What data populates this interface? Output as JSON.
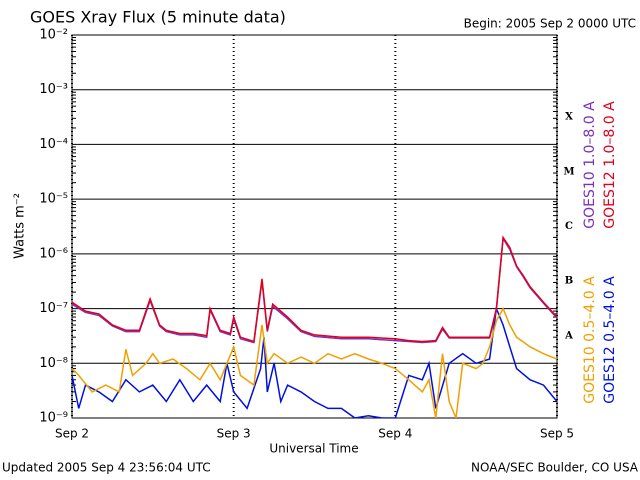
{
  "chart_data": {
    "type": "line",
    "title": "GOES Xray Flux (5 minute data)",
    "subtitle": "Begin:  2005 Sep 2 0000 UTC",
    "y_label": "Watts m⁻²",
    "x_label": "Universal Time",
    "footer_left": "Updated 2005 Sep  4 23:56:04 UTC",
    "footer_right": "NOAA/SEC Boulder, CO USA",
    "log_scale": true,
    "grid": true,
    "xlim": [
      0,
      72
    ],
    "xticks": [
      {
        "value": 0,
        "label": "Sep 2"
      },
      {
        "value": 24,
        "label": "Sep 3"
      },
      {
        "value": 48,
        "label": "Sep 4"
      },
      {
        "value": 72,
        "label": "Sep 5"
      }
    ],
    "ylim": [
      1e-09,
      0.01
    ],
    "yticks": [
      {
        "value": 1e-09,
        "label": "10⁻⁹"
      },
      {
        "value": 1e-08,
        "label": "10⁻⁸"
      },
      {
        "value": 1e-07,
        "label": "10⁻⁷"
      },
      {
        "value": 1e-06,
        "label": "10⁻⁶"
      },
      {
        "value": 1e-05,
        "label": "10⁻⁵"
      },
      {
        "value": 0.0001,
        "label": "10⁻⁴"
      },
      {
        "value": 0.001,
        "label": "10⁻³"
      },
      {
        "value": 0.01,
        "label": "10⁻²"
      }
    ],
    "flare_classes": [
      {
        "label": "A",
        "value": 1e-08
      },
      {
        "label": "B",
        "value": 1e-07
      },
      {
        "label": "C",
        "value": 1e-06
      },
      {
        "label": "M",
        "value": 1e-05
      },
      {
        "label": "X",
        "value": 0.0001
      }
    ],
    "series": [
      {
        "name": "GOES10 1.0–8.0 A",
        "color": "#7b2fbe",
        "x": [
          0,
          2,
          4,
          6,
          8,
          10,
          11.6,
          13,
          14,
          16,
          18,
          20,
          20.5,
          22,
          23.5,
          24,
          25,
          27,
          28.2,
          29,
          29.8,
          32,
          34,
          36,
          40,
          44,
          48,
          50,
          52,
          54,
          55,
          56,
          58,
          60,
          62,
          63,
          64,
          65,
          66,
          67,
          68,
          70,
          72
        ],
        "values": [
          1.2e-07,
          8.5e-08,
          7.5e-08,
          4.8e-08,
          3.8e-08,
          3.8e-08,
          1.4e-07,
          4.8e-08,
          3.8e-08,
          3.3e-08,
          3.3e-08,
          3e-08,
          9.5e-08,
          3.8e-08,
          3.3e-08,
          6.5e-08,
          2.8e-08,
          2.4e-08,
          3.2e-07,
          3.8e-08,
          1.1e-07,
          6.5e-08,
          3.8e-08,
          3.1e-08,
          2.8e-08,
          2.8e-08,
          2.6e-08,
          2.5e-08,
          2.4e-08,
          2.5e-08,
          4.2e-08,
          2.9e-08,
          2.9e-08,
          2.9e-08,
          2.9e-08,
          9.5e-08,
          1.9e-06,
          1.2e-06,
          5.8e-07,
          3.8e-07,
          2.4e-07,
          1.25e-07,
          6.7e-08
        ]
      },
      {
        "name": "GOES12 1.0–8.0 A",
        "color": "#e0001b",
        "x": [
          0,
          2,
          4,
          6,
          8,
          10,
          11.6,
          13,
          14,
          16,
          18,
          20,
          20.5,
          22,
          23.5,
          24,
          25,
          27,
          28.2,
          29,
          29.8,
          32,
          34,
          36,
          40,
          44,
          48,
          50,
          52,
          54,
          55,
          56,
          58,
          60,
          62,
          63,
          64,
          65,
          66,
          67,
          68,
          70,
          72
        ],
        "values": [
          1.3e-07,
          9e-08,
          8e-08,
          5e-08,
          4e-08,
          4e-08,
          1.5e-07,
          5e-08,
          4e-08,
          3.5e-08,
          3.5e-08,
          3.2e-08,
          1e-07,
          4e-08,
          3.5e-08,
          7e-08,
          3e-08,
          2.5e-08,
          3.5e-07,
          4e-08,
          1.2e-07,
          7e-08,
          4e-08,
          3.3e-08,
          3e-08,
          3e-08,
          2.8e-08,
          2.6e-08,
          2.5e-08,
          2.6e-08,
          4.5e-08,
          3e-08,
          3e-08,
          3e-08,
          3e-08,
          1e-07,
          2e-06,
          1.3e-06,
          6e-07,
          4e-07,
          2.5e-07,
          1.3e-07,
          7e-08
        ]
      },
      {
        "name": "GOES10 0.5–4.0 A",
        "color": "#f0a000",
        "x": [
          0,
          1,
          3,
          5,
          7,
          8,
          9,
          11,
          12,
          13,
          15,
          17,
          19,
          20.5,
          22,
          24,
          25,
          27,
          28.2,
          29,
          30,
          32,
          34,
          36,
          38,
          40,
          42,
          44,
          46,
          48,
          50,
          52,
          53,
          54,
          55,
          56,
          57,
          58,
          60,
          61,
          62,
          63,
          64,
          65,
          66,
          68,
          70,
          72
        ],
        "values": [
          8e-09,
          6e-09,
          3e-09,
          4e-09,
          3e-09,
          1.8e-08,
          6e-09,
          1e-08,
          1.5e-08,
          1e-08,
          1.2e-08,
          8e-09,
          5e-09,
          1e-08,
          5e-09,
          2e-08,
          6e-09,
          4e-09,
          5e-08,
          1e-08,
          1.5e-08,
          1e-08,
          1.3e-08,
          1e-08,
          1.5e-08,
          1.2e-08,
          1.5e-08,
          1.2e-08,
          1e-08,
          8e-09,
          5e-09,
          3e-09,
          5e-09,
          1e-09,
          1.5e-08,
          2e-09,
          1e-09,
          1e-08,
          8e-09,
          1e-08,
          2e-08,
          6e-08,
          1e-07,
          5e-08,
          3e-08,
          2e-08,
          1.5e-08,
          1.2e-08
        ]
      },
      {
        "name": "GOES12 0.5–4.0 A",
        "color": "#0010e0",
        "x": [
          0,
          1,
          2,
          4,
          6,
          8,
          10,
          12,
          14,
          16,
          18,
          20,
          22,
          23,
          24,
          26,
          28,
          28.5,
          29,
          30,
          31,
          32,
          34,
          36,
          38,
          40,
          42,
          44,
          46,
          48,
          50,
          52,
          53,
          54,
          56,
          58,
          60,
          62,
          63,
          64,
          65,
          66,
          68,
          70,
          72
        ],
        "values": [
          6e-09,
          1.5e-09,
          4e-09,
          3e-09,
          2e-09,
          5e-09,
          3e-09,
          4e-09,
          2e-09,
          5e-09,
          2e-09,
          4e-09,
          2e-09,
          1e-08,
          3e-09,
          1.5e-09,
          8e-09,
          3e-08,
          3e-09,
          1e-08,
          2e-09,
          4e-09,
          3e-09,
          2e-09,
          1.5e-09,
          1.5e-09,
          1e-09,
          1.1e-09,
          1e-09,
          1e-09,
          6e-09,
          5e-09,
          1e-08,
          1.5e-09,
          1e-08,
          1.5e-08,
          1e-08,
          1.2e-08,
          1e-07,
          5e-08,
          2e-08,
          8e-09,
          5e-09,
          4e-09,
          2e-09
        ]
      }
    ]
  }
}
